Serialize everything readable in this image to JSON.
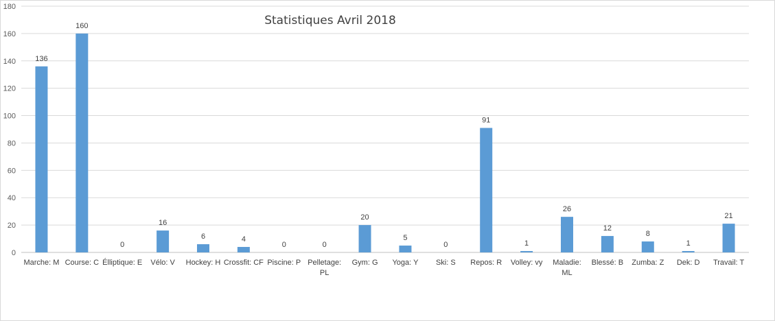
{
  "colors": {
    "bar": "#5b9bd5",
    "grid": "#d9d9d9",
    "axis": "#bfbfbf"
  },
  "chart_data": {
    "type": "bar",
    "title": "Statistiques Avril 2018",
    "xlabel": "",
    "ylabel": "",
    "ylim": [
      0,
      180
    ],
    "yticks": [
      0,
      20,
      40,
      60,
      80,
      100,
      120,
      140,
      160,
      180
    ],
    "grid": true,
    "legend": "none",
    "categories": [
      [
        "Marche: M"
      ],
      [
        "Course: C"
      ],
      [
        "Élliptique: E"
      ],
      [
        "Vélo: V"
      ],
      [
        "Hockey: H"
      ],
      [
        "Crossfit: CF"
      ],
      [
        "Piscine: P"
      ],
      [
        "Pelletage:",
        "PL"
      ],
      [
        "Gym: G"
      ],
      [
        "Yoga: Y"
      ],
      [
        "Ski: S"
      ],
      [
        "Repos: R"
      ],
      [
        "Volley: vy"
      ],
      [
        "Maladie:",
        "ML"
      ],
      [
        "Blessé: B"
      ],
      [
        "Zumba: Z"
      ],
      [
        "Dek: D"
      ],
      [
        "Travail: T"
      ]
    ],
    "values": [
      136,
      160,
      0,
      16,
      6,
      4,
      0,
      0,
      20,
      5,
      0,
      91,
      1,
      26,
      12,
      8,
      1,
      21
    ]
  }
}
